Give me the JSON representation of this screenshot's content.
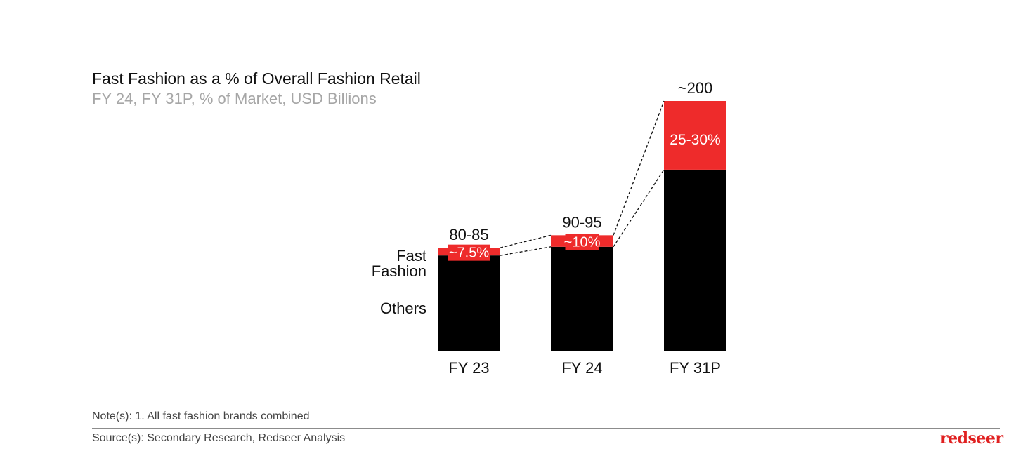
{
  "header": {
    "title": "Fast Fashion as a % of Overall Fashion Retail",
    "subtitle": "FY 24, FY 31P, % of Market, USD Billions"
  },
  "footer": {
    "note": "Note(s): 1. All fast fashion brands combined",
    "source": "Source(s): Secondary Research, Redseer Analysis",
    "logo": "redseer"
  },
  "chart_data": {
    "type": "bar",
    "stacked": true,
    "title": "Fast Fashion as a % of Overall Fashion Retail",
    "subtitle": "FY 24, FY 31P, % of Market, USD Billions",
    "categories": [
      "FY 23",
      "FY 24",
      "FY 31P"
    ],
    "totals": [
      82.5,
      92.5,
      200
    ],
    "total_labels": [
      "80-85",
      "90-95",
      "~200"
    ],
    "share_pct": [
      7.5,
      10,
      27.5
    ],
    "share_labels": [
      "~7.5%",
      "~10%",
      "25-30%"
    ],
    "series": [
      {
        "name": "Others",
        "color": "#000000"
      },
      {
        "name": "Fast Fashion",
        "color": "#ee2b2b"
      }
    ],
    "legend_labels": {
      "fast_fashion": [
        "Fast",
        "Fashion"
      ],
      "others": "Others"
    },
    "ylim": [
      0,
      200
    ],
    "grid": false,
    "connectors": "dashed"
  }
}
